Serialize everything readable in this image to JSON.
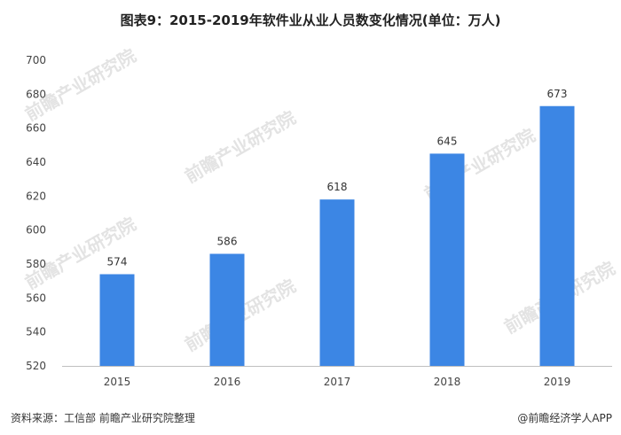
{
  "title": "图表9：2015-2019年软件业从业人员数变化情况(单位：万人)",
  "footer": {
    "source": "资料来源：工信部 前瞻产业研究院整理",
    "credit": "@前瞻经济学人APP"
  },
  "watermark": "前瞻产业研究院",
  "colors": {
    "bar": "#3c86e4"
  },
  "chart_data": {
    "type": "bar",
    "title": "图表9：2015-2019年软件业从业人员数变化情况(单位：万人)",
    "categories": [
      "2015",
      "2016",
      "2017",
      "2018",
      "2019"
    ],
    "values": [
      574,
      586,
      618,
      645,
      673
    ],
    "yticks": [
      520,
      540,
      560,
      580,
      600,
      620,
      640,
      660,
      680,
      700
    ],
    "ylim": [
      520,
      700
    ],
    "xlabel": "",
    "ylabel": "",
    "grid": false,
    "data_labels": true
  }
}
